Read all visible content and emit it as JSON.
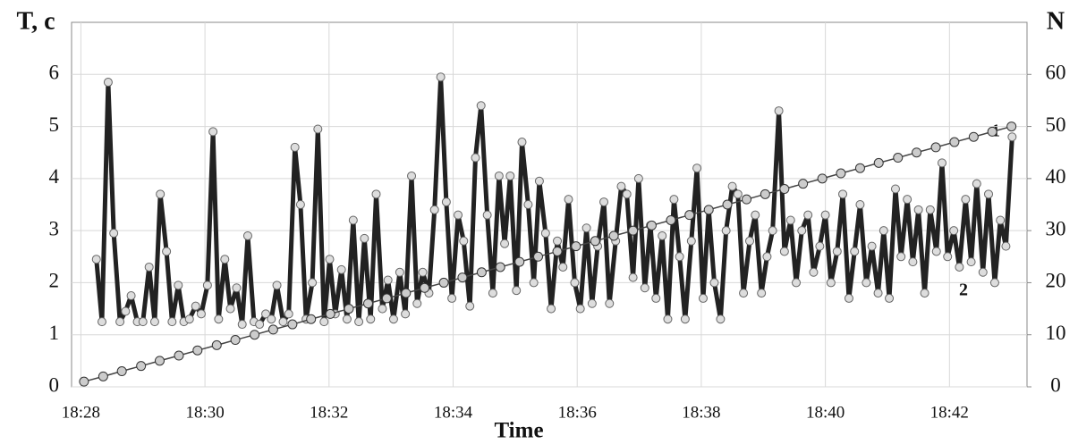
{
  "chart_data": {
    "type": "line",
    "y_label": "T, c",
    "y2_label": "N",
    "x_label": "Time",
    "xlim": [
      1107.85,
      1123.25
    ],
    "xticks": [
      {
        "value": 1108,
        "label": "18:28"
      },
      {
        "value": 1110,
        "label": "18:30"
      },
      {
        "value": 1112,
        "label": "18:32"
      },
      {
        "value": 1114,
        "label": "18:34"
      },
      {
        "value": 1116,
        "label": "18:36"
      },
      {
        "value": 1118,
        "label": "18:38"
      },
      {
        "value": 1120,
        "label": "18:40"
      },
      {
        "value": 1122,
        "label": "18:42"
      }
    ],
    "ylim": [
      0,
      7
    ],
    "yticks": [
      0,
      1,
      2,
      3,
      4,
      5,
      6
    ],
    "y2lim": [
      0,
      70
    ],
    "y2ticks": [
      0,
      10,
      20,
      30,
      40,
      50,
      60
    ],
    "grid": true,
    "series": [
      {
        "name": "2",
        "color": "#222222",
        "x": [
          1108.25,
          1108.34,
          1108.44,
          1108.53,
          1108.63,
          1108.72,
          1108.81,
          1108.91,
          1109.0,
          1109.1,
          1109.19,
          1109.28,
          1109.38,
          1109.47,
          1109.57,
          1109.66,
          1109.75,
          1109.85,
          1109.94,
          1110.04,
          1110.13,
          1110.22,
          1110.32,
          1110.41,
          1110.51,
          1110.6,
          1110.69,
          1110.79,
          1110.88,
          1110.98,
          1111.07,
          1111.16,
          1111.26,
          1111.35,
          1111.45,
          1111.54,
          1111.63,
          1111.73,
          1111.82,
          1111.92,
          1112.01,
          1112.1,
          1112.2,
          1112.29,
          1112.39,
          1112.48,
          1112.57,
          1112.67,
          1112.76,
          1112.86,
          1112.95,
          1113.04,
          1113.14,
          1113.23,
          1113.33,
          1113.42,
          1113.51,
          1113.61,
          1113.7,
          1113.8,
          1113.89,
          1113.98,
          1114.08,
          1114.17,
          1114.27,
          1114.36,
          1114.45,
          1114.55,
          1114.64,
          1114.74,
          1114.83,
          1114.92,
          1115.02,
          1115.11,
          1115.21,
          1115.3,
          1115.39,
          1115.49,
          1115.58,
          1115.68,
          1115.77,
          1115.86,
          1115.96,
          1116.05,
          1116.15,
          1116.24,
          1116.33,
          1116.43,
          1116.52,
          1116.62,
          1116.71,
          1116.8,
          1116.9,
          1116.99,
          1117.09,
          1117.18,
          1117.27,
          1117.37,
          1117.46,
          1117.56,
          1117.65,
          1117.74,
          1117.84,
          1117.93,
          1118.03,
          1118.12,
          1118.21,
          1118.31,
          1118.4,
          1118.5,
          1118.59,
          1118.68,
          1118.78,
          1118.87,
          1118.97,
          1119.06,
          1119.15,
          1119.25,
          1119.34,
          1119.44,
          1119.53,
          1119.62,
          1119.72,
          1119.81,
          1119.91,
          1120.0,
          1120.09,
          1120.19,
          1120.28,
          1120.38,
          1120.47,
          1120.56,
          1120.66,
          1120.75,
          1120.85,
          1120.94,
          1121.03,
          1121.13,
          1121.22,
          1121.32,
          1121.41,
          1121.5,
          1121.6,
          1121.69,
          1121.79,
          1121.88,
          1121.97,
          1122.07,
          1122.16,
          1122.26,
          1122.35,
          1122.44,
          1122.54,
          1122.63,
          1122.73,
          1122.82,
          1122.91,
          1123.01
        ],
        "values": [
          2.45,
          1.25,
          5.85,
          2.95,
          1.25,
          1.45,
          1.75,
          1.25,
          1.25,
          2.3,
          1.25,
          3.7,
          2.6,
          1.25,
          1.95,
          1.25,
          1.3,
          1.55,
          1.4,
          1.95,
          4.9,
          1.3,
          2.45,
          1.5,
          1.9,
          1.2,
          2.9,
          1.25,
          1.2,
          1.4,
          1.3,
          1.95,
          1.25,
          1.4,
          4.6,
          3.5,
          1.3,
          2.0,
          4.95,
          1.25,
          2.45,
          1.4,
          2.25,
          1.3,
          3.2,
          1.25,
          2.85,
          1.3,
          3.7,
          1.5,
          2.05,
          1.3,
          2.2,
          1.4,
          4.05,
          1.6,
          2.2,
          1.8,
          3.4,
          5.95,
          3.55,
          1.7,
          3.3,
          2.8,
          1.55,
          4.4,
          5.4,
          3.3,
          1.8,
          4.05,
          2.75,
          4.05,
          1.85,
          4.7,
          3.5,
          2.0,
          3.95,
          2.95,
          1.5,
          2.8,
          2.3,
          3.6,
          2.0,
          1.5,
          3.05,
          1.6,
          2.7,
          3.55,
          1.6,
          2.8,
          3.85,
          3.7,
          2.1,
          4.0,
          1.9,
          3.1,
          1.7,
          2.9,
          1.3,
          3.6,
          2.5,
          1.3,
          2.8,
          4.2,
          1.7,
          3.4,
          2.0,
          1.3,
          3.0,
          3.85,
          3.7,
          1.8,
          2.8,
          3.3,
          1.8,
          2.5,
          3.0,
          5.3,
          2.6,
          3.2,
          2.0,
          3.0,
          3.3,
          2.2,
          2.7,
          3.3,
          2.0,
          2.6,
          3.7,
          1.7,
          2.6,
          3.5,
          2.0,
          2.7,
          1.8,
          3.0,
          1.7,
          3.8,
          2.5,
          3.6,
          2.4,
          3.4,
          1.8,
          3.4,
          2.6,
          4.3,
          2.5,
          3.0,
          2.3,
          3.6,
          2.4,
          3.9,
          2.2,
          3.7,
          2.0,
          3.2,
          2.7,
          4.8
        ]
      },
      {
        "name": "1",
        "color": "#cccccc",
        "axis": "y2",
        "x": [
          1108.05,
          1108.36,
          1108.66,
          1108.97,
          1109.27,
          1109.58,
          1109.88,
          1110.19,
          1110.49,
          1110.8,
          1111.1,
          1111.41,
          1111.71,
          1112.02,
          1112.32,
          1112.63,
          1112.93,
          1113.24,
          1113.54,
          1113.85,
          1114.15,
          1114.46,
          1114.76,
          1115.07,
          1115.37,
          1115.68,
          1115.98,
          1116.29,
          1116.59,
          1116.9,
          1117.2,
          1117.51,
          1117.81,
          1118.12,
          1118.42,
          1118.73,
          1119.03,
          1119.34,
          1119.64,
          1119.95,
          1120.25,
          1120.56,
          1120.86,
          1121.17,
          1121.47,
          1121.78,
          1122.08,
          1122.39,
          1122.69,
          1123.0
        ],
        "values": [
          1,
          2,
          3,
          4,
          5,
          6,
          7,
          8,
          9,
          10,
          11,
          12,
          13,
          14,
          15,
          16,
          17,
          18,
          19,
          20,
          21,
          22,
          23,
          24,
          25,
          26,
          27,
          28,
          29,
          30,
          31,
          32,
          33,
          34,
          35,
          36,
          37,
          38,
          39,
          40,
          41,
          42,
          43,
          44,
          45,
          46,
          47,
          48,
          49,
          50
        ]
      }
    ]
  }
}
